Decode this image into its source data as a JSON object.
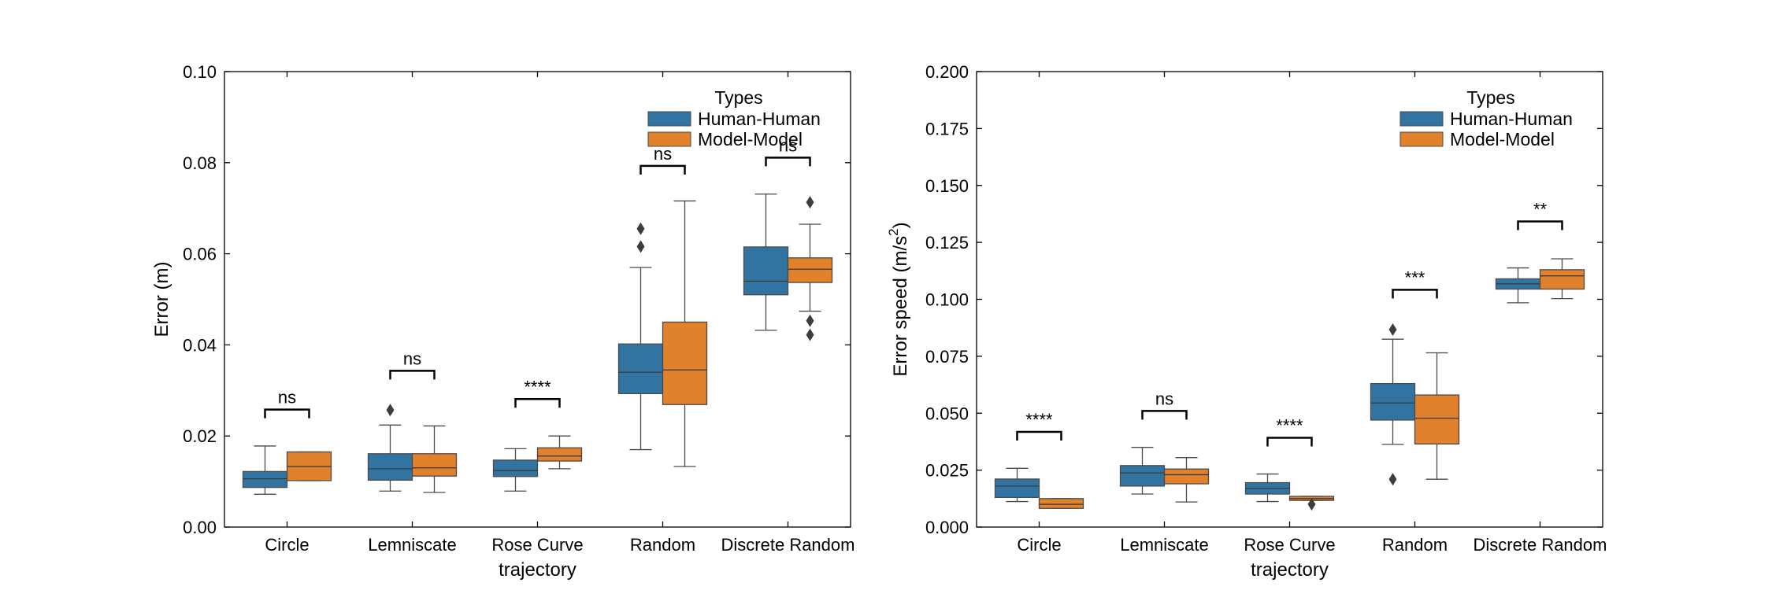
{
  "colors": {
    "human": "#3274a1",
    "model": "#e1812c",
    "median": "#3a3a3a",
    "whisker": "#4a4a4a",
    "outlier": "#3d3d3d",
    "annotation": "#000000"
  },
  "chart_data": [
    {
      "type": "box",
      "xlabel": "trajectory",
      "ylabel": "Error (m)",
      "ylim": [
        0,
        0.1
      ],
      "yticks": [
        "0.00",
        "0.02",
        "0.04",
        "0.06",
        "0.08",
        "0.10"
      ],
      "categories": [
        "Circle",
        "Lemniscate",
        "Rose Curve",
        "Random",
        "Discrete Random"
      ],
      "legend": {
        "title": "Types",
        "position": "top-right",
        "entries": [
          "Human-Human",
          "Model-Model"
        ]
      },
      "series": [
        {
          "name": "Human-Human",
          "color": "#3274a1",
          "boxes": [
            {
              "whislo": 0.0072,
              "q1": 0.0087,
              "med": 0.0106,
              "q3": 0.0122,
              "whishi": 0.0178,
              "fliers": []
            },
            {
              "whislo": 0.0079,
              "q1": 0.0103,
              "med": 0.0128,
              "q3": 0.0161,
              "whishi": 0.0224,
              "fliers": [
                0.0257
              ]
            },
            {
              "whislo": 0.0079,
              "q1": 0.0111,
              "med": 0.0124,
              "q3": 0.0147,
              "whishi": 0.0172,
              "fliers": []
            },
            {
              "whislo": 0.017,
              "q1": 0.0293,
              "med": 0.034,
              "q3": 0.0402,
              "whishi": 0.057,
              "fliers": [
                0.0616,
                0.0655
              ]
            },
            {
              "whislo": 0.0432,
              "q1": 0.051,
              "med": 0.054,
              "q3": 0.0615,
              "whishi": 0.0731,
              "fliers": []
            }
          ]
        },
        {
          "name": "Model-Model",
          "color": "#e1812c",
          "boxes": [
            {
              "whislo": 0.0102,
              "q1": 0.0102,
              "med": 0.0133,
              "q3": 0.0165,
              "whishi": 0.0165,
              "fliers": []
            },
            {
              "whislo": 0.0076,
              "q1": 0.0112,
              "med": 0.013,
              "q3": 0.0161,
              "whishi": 0.0222,
              "fliers": []
            },
            {
              "whislo": 0.0128,
              "q1": 0.0145,
              "med": 0.0156,
              "q3": 0.0174,
              "whishi": 0.02,
              "fliers": []
            },
            {
              "whislo": 0.0133,
              "q1": 0.0269,
              "med": 0.0345,
              "q3": 0.045,
              "whishi": 0.0716,
              "fliers": []
            },
            {
              "whislo": 0.0474,
              "q1": 0.0537,
              "med": 0.0566,
              "q3": 0.0591,
              "whishi": 0.0665,
              "fliers": [
                0.0713,
                0.0453,
                0.0422
              ]
            }
          ]
        }
      ],
      "annotations": [
        {
          "category": 0,
          "text": "ns",
          "y": 0.0258
        },
        {
          "category": 1,
          "text": "ns",
          "y": 0.0343
        },
        {
          "category": 2,
          "text": "****",
          "y": 0.0281
        },
        {
          "category": 3,
          "text": "ns",
          "y": 0.0793
        },
        {
          "category": 4,
          "text": "ns",
          "y": 0.0811
        }
      ]
    },
    {
      "type": "box",
      "xlabel": "trajectory",
      "ylabel": "Error speed (m/s",
      "ylabel_sup": "2",
      "ylabel_end": ")",
      "ylim": [
        0,
        0.2
      ],
      "yticks": [
        "0.000",
        "0.025",
        "0.050",
        "0.075",
        "0.100",
        "0.125",
        "0.150",
        "0.175",
        "0.200"
      ],
      "categories": [
        "Circle",
        "Lemniscate",
        "Rose Curve",
        "Random",
        "Discrete Random"
      ],
      "legend": {
        "title": "Types",
        "position": "top-right",
        "entries": [
          "Human-Human",
          "Model-Model"
        ]
      },
      "series": [
        {
          "name": "Human-Human",
          "color": "#3274a1",
          "boxes": [
            {
              "whislo": 0.0112,
              "q1": 0.013,
              "med": 0.018,
              "q3": 0.0211,
              "whishi": 0.0258,
              "fliers": []
            },
            {
              "whislo": 0.0145,
              "q1": 0.018,
              "med": 0.0238,
              "q3": 0.027,
              "whishi": 0.035,
              "fliers": []
            },
            {
              "whislo": 0.0112,
              "q1": 0.0145,
              "med": 0.017,
              "q3": 0.0195,
              "whishi": 0.0233,
              "fliers": []
            },
            {
              "whislo": 0.0363,
              "q1": 0.047,
              "med": 0.0545,
              "q3": 0.063,
              "whishi": 0.0825,
              "fliers": [
                0.0867,
                0.021
              ]
            },
            {
              "whislo": 0.0985,
              "q1": 0.1045,
              "med": 0.1068,
              "q3": 0.109,
              "whishi": 0.1138,
              "fliers": []
            }
          ]
        },
        {
          "name": "Model-Model",
          "color": "#e1812c",
          "boxes": [
            {
              "whislo": 0.0082,
              "q1": 0.0082,
              "med": 0.01,
              "q3": 0.0125,
              "whishi": 0.0125,
              "fliers": []
            },
            {
              "whislo": 0.011,
              "q1": 0.019,
              "med": 0.023,
              "q3": 0.0255,
              "whishi": 0.0305,
              "fliers": []
            },
            {
              "whislo": 0.0117,
              "q1": 0.0117,
              "med": 0.0125,
              "q3": 0.0135,
              "whishi": 0.0135,
              "fliers": [
                0.01
              ]
            },
            {
              "whislo": 0.021,
              "q1": 0.0365,
              "med": 0.0478,
              "q3": 0.058,
              "whishi": 0.0765,
              "fliers": []
            },
            {
              "whislo": 0.1003,
              "q1": 0.1045,
              "med": 0.1103,
              "q3": 0.113,
              "whishi": 0.1178,
              "fliers": []
            }
          ]
        }
      ],
      "annotations": [
        {
          "category": 0,
          "text": "****",
          "y": 0.0418
        },
        {
          "category": 1,
          "text": "ns",
          "y": 0.051
        },
        {
          "category": 2,
          "text": "****",
          "y": 0.0392
        },
        {
          "category": 3,
          "text": "***",
          "y": 0.1042
        },
        {
          "category": 4,
          "text": "**",
          "y": 0.1342
        }
      ]
    }
  ]
}
